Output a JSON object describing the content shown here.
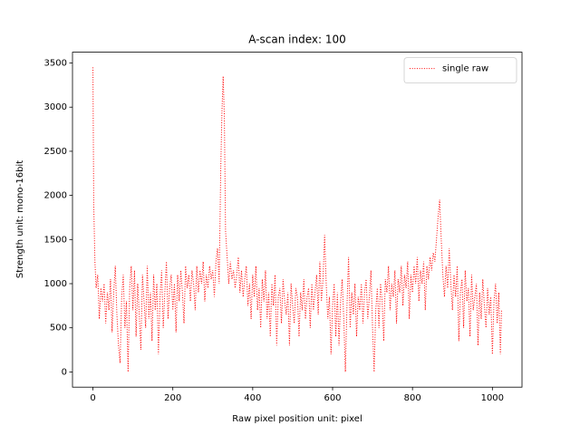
{
  "chart_data": {
    "type": "line",
    "title": "A-scan index: 100",
    "x_label": "Raw pixel position unit: pixel",
    "y_label": "Strength unit: mono-16bit",
    "x": [
      0,
      2,
      5,
      8,
      12,
      16,
      20,
      24,
      28,
      32,
      36,
      40,
      44,
      48,
      52,
      56,
      60,
      64,
      68,
      72,
      76,
      80,
      84,
      88,
      92,
      96,
      100,
      104,
      108,
      112,
      116,
      120,
      124,
      128,
      132,
      136,
      140,
      144,
      148,
      152,
      156,
      160,
      164,
      168,
      172,
      176,
      180,
      184,
      188,
      192,
      196,
      200,
      204,
      208,
      212,
      216,
      220,
      224,
      228,
      232,
      236,
      240,
      244,
      248,
      252,
      256,
      260,
      264,
      268,
      272,
      276,
      280,
      284,
      288,
      292,
      296,
      300,
      304,
      308,
      312,
      316,
      320,
      323,
      326,
      329,
      332,
      336,
      340,
      344,
      348,
      352,
      356,
      360,
      364,
      368,
      372,
      376,
      380,
      384,
      388,
      392,
      396,
      400,
      404,
      408,
      412,
      416,
      420,
      424,
      428,
      432,
      436,
      440,
      444,
      448,
      452,
      456,
      460,
      464,
      468,
      472,
      476,
      480,
      484,
      488,
      492,
      496,
      500,
      504,
      508,
      512,
      516,
      520,
      524,
      528,
      532,
      536,
      540,
      544,
      548,
      552,
      556,
      560,
      564,
      568,
      572,
      576,
      580,
      584,
      588,
      592,
      596,
      600,
      604,
      608,
      612,
      616,
      620,
      624,
      628,
      632,
      636,
      640,
      644,
      648,
      652,
      656,
      660,
      664,
      668,
      672,
      676,
      680,
      684,
      688,
      692,
      696,
      700,
      704,
      708,
      712,
      716,
      720,
      724,
      728,
      732,
      736,
      740,
      744,
      748,
      752,
      756,
      760,
      764,
      768,
      772,
      776,
      780,
      784,
      788,
      792,
      796,
      800,
      804,
      808,
      812,
      816,
      820,
      824,
      828,
      832,
      836,
      840,
      844,
      848,
      852,
      856,
      860,
      864,
      868,
      872,
      876,
      880,
      884,
      888,
      892,
      896,
      900,
      904,
      908,
      912,
      916,
      920,
      924,
      928,
      932,
      936,
      940,
      944,
      948,
      952,
      956,
      960,
      964,
      968,
      972,
      976,
      980,
      984,
      988,
      992,
      996,
      1000,
      1004,
      1008,
      1012,
      1016,
      1020,
      1023
    ],
    "series": [
      {
        "name": "single raw",
        "color": "#ff0000",
        "values": [
          3450,
          1900,
          1250,
          950,
          1100,
          600,
          950,
          800,
          1000,
          550,
          900,
          700,
          1050,
          450,
          900,
          1200,
          650,
          300,
          100,
          850,
          1100,
          500,
          800,
          0,
          950,
          1200,
          700,
          1150,
          400,
          1000,
          650,
          250,
          1100,
          800,
          500,
          1200,
          600,
          900,
          350,
          1100,
          700,
          1000,
          200,
          850,
          1150,
          500,
          900,
          1250,
          600,
          950,
          1100,
          700,
          1000,
          450,
          1100,
          800,
          1150,
          900,
          550,
          1200,
          950,
          1100,
          800,
          1150,
          1000,
          700,
          1200,
          900,
          1150,
          1000,
          1250,
          800,
          1100,
          950,
          1200,
          1050,
          1150,
          850,
          1250,
          1400,
          1000,
          2300,
          2950,
          3350,
          2900,
          1600,
          1300,
          1000,
          1250,
          1050,
          1150,
          950,
          1100,
          1300,
          900,
          1150,
          850,
          1050,
          1200,
          750,
          1000,
          600,
          1100,
          850,
          1200,
          700,
          950,
          500,
          1050,
          800,
          1150,
          600,
          900,
          400,
          1000,
          750,
          1100,
          300,
          850,
          950,
          550,
          1050,
          800,
          650,
          900,
          300,
          1000,
          750,
          550,
          950,
          850,
          400,
          900,
          700,
          1050,
          600,
          850,
          950,
          500,
          1000,
          700,
          900,
          1100,
          650,
          1250,
          800,
          1050,
          1550,
          1000,
          600,
          850,
          200,
          750,
          1000,
          400,
          900,
          300,
          800,
          1050,
          600,
          0,
          750,
          1300,
          500,
          900,
          650,
          1000,
          400,
          850,
          700,
          1000,
          550,
          900,
          1050,
          600,
          850,
          1150,
          500,
          0,
          700,
          950,
          500,
          1000,
          800,
          350,
          1050,
          900,
          1200,
          700,
          1000,
          850,
          1150,
          550,
          1050,
          900,
          1200,
          750,
          1100,
          950,
          1250,
          600,
          1100,
          900,
          1200,
          1000,
          1300,
          800,
          1150,
          1000,
          1250,
          700,
          1200,
          1050,
          1300,
          1150,
          1350,
          1250,
          1500,
          1750,
          1950,
          1500,
          1100,
          850,
          1200,
          950,
          1400,
          1000,
          700,
          1100,
          850,
          1200,
          350,
          900,
          1050,
          500,
          1150,
          800,
          950,
          400,
          1100,
          700,
          850,
          1000,
          300,
          900,
          600,
          1050,
          750,
          500,
          950,
          650,
          850,
          200,
          800,
          1000,
          550,
          900,
          200,
          700
        ]
      }
    ],
    "xlim": [
      -51.15,
      1074.15
    ],
    "ylim": [
      -172.5,
      3622.5
    ],
    "xticks": [
      0,
      200,
      400,
      600,
      800,
      1000
    ],
    "yticks": [
      0,
      500,
      1000,
      1500,
      2000,
      2500,
      3000,
      3500
    ],
    "line_style": "dotted",
    "legend": "upper right",
    "grid": false
  }
}
